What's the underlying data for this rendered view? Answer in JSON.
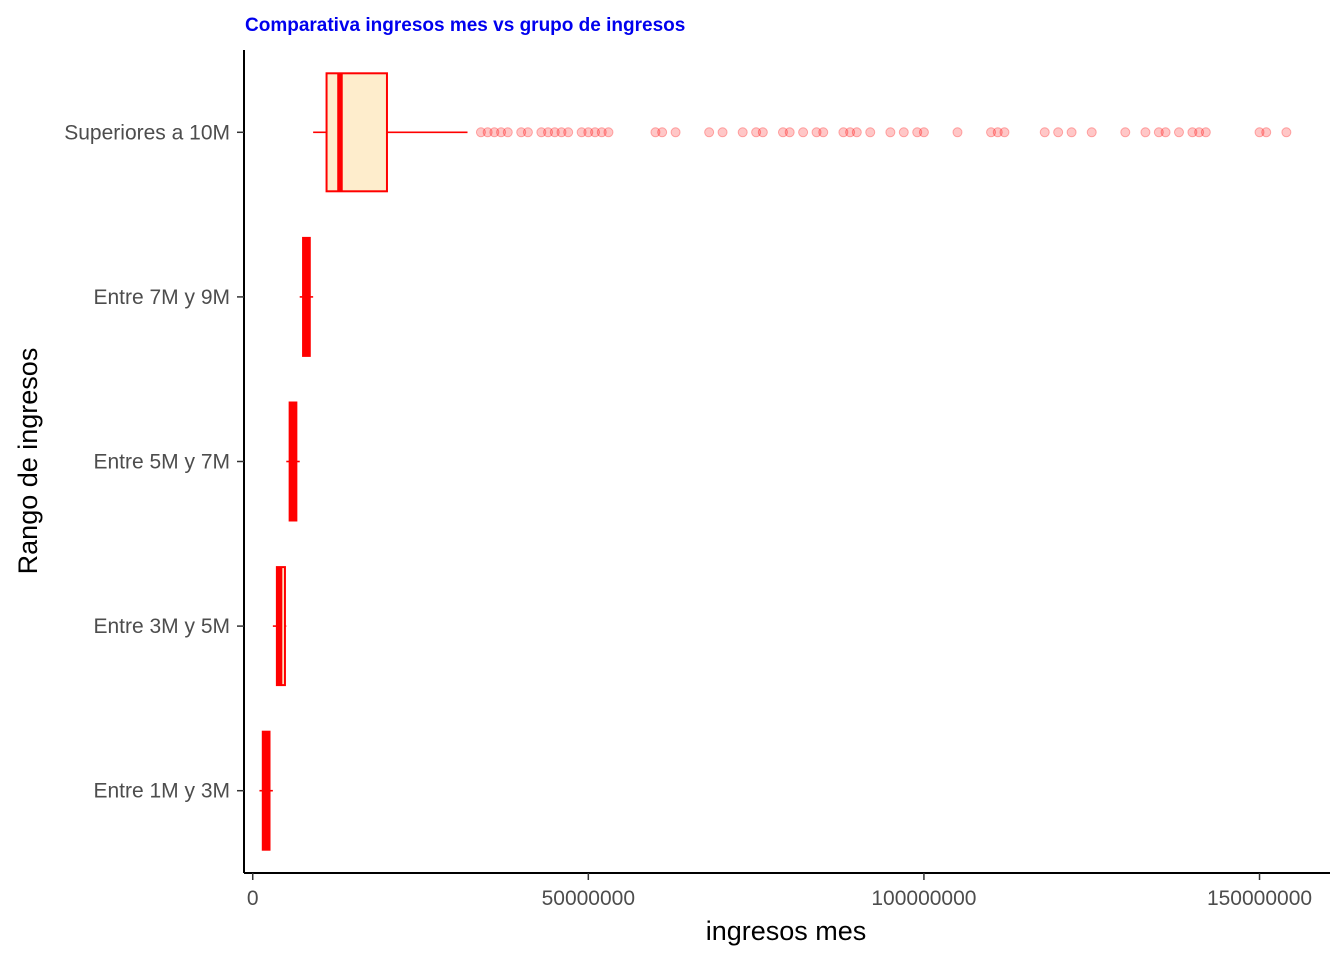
{
  "chart_data": {
    "type": "boxplot",
    "orientation": "horizontal",
    "title": "Comparativa ingresos mes vs grupo de ingresos",
    "xlabel": "ingresos mes",
    "ylabel": "Rango de ingresos",
    "xlim": [
      -1300000,
      160500000
    ],
    "x_ticks": [
      0,
      50000000,
      100000000,
      150000000
    ],
    "x_tick_labels": [
      "0",
      "50000000",
      "100000000",
      "150000000"
    ],
    "grid": false,
    "categories": [
      "Entre 1M y 3M",
      "Entre 3M y  5M",
      "Entre 5M y 7M",
      "Entre 7M y 9M",
      "Superiores a 10M"
    ],
    "boxes": [
      {
        "category": "Entre 1M y 3M",
        "whisker_low": 1000000,
        "q1": 1500000,
        "median": 2000000,
        "q3": 2500000,
        "whisker_high": 3000000
      },
      {
        "category": "Entre 3M y  5M",
        "whisker_low": 3000000,
        "q1": 3600000,
        "median": 4000000,
        "q3": 4800000,
        "whisker_high": 5000000
      },
      {
        "category": "Entre 5M y 7M",
        "whisker_low": 5000000,
        "q1": 5500000,
        "median": 6000000,
        "q3": 6500000,
        "whisker_high": 7000000
      },
      {
        "category": "Entre 7M y 9M",
        "whisker_low": 7000000,
        "q1": 7500000,
        "median": 8000000,
        "q3": 8500000,
        "whisker_high": 9000000
      },
      {
        "category": "Superiores a 10M",
        "whisker_low": 9000000,
        "q1": 11000000,
        "median": 13000000,
        "q3": 20000000,
        "whisker_high": 32000000
      }
    ],
    "outliers": {
      "category": "Superiores a 10M",
      "values": [
        34000000,
        35000000,
        36000000,
        37000000,
        38000000,
        40000000,
        41000000,
        43000000,
        44000000,
        45000000,
        46000000,
        47000000,
        49000000,
        50000000,
        51000000,
        52000000,
        53000000,
        60000000,
        61000000,
        63000000,
        68000000,
        70000000,
        73000000,
        75000000,
        76000000,
        79000000,
        80000000,
        82000000,
        84000000,
        85000000,
        88000000,
        89000000,
        90000000,
        92000000,
        95000000,
        97000000,
        99000000,
        100000000,
        105000000,
        110000000,
        111000000,
        112000000,
        118000000,
        120000000,
        122000000,
        125000000,
        130000000,
        133000000,
        135000000,
        136000000,
        138000000,
        140000000,
        141000000,
        142000000,
        150000000,
        151000000,
        154000000
      ]
    },
    "colors": {
      "title": "#0000ee",
      "stroke": "#ff0000",
      "box_fill": "#feedcc",
      "axis": "#000000",
      "tick_label": "#4d4d4d"
    }
  }
}
